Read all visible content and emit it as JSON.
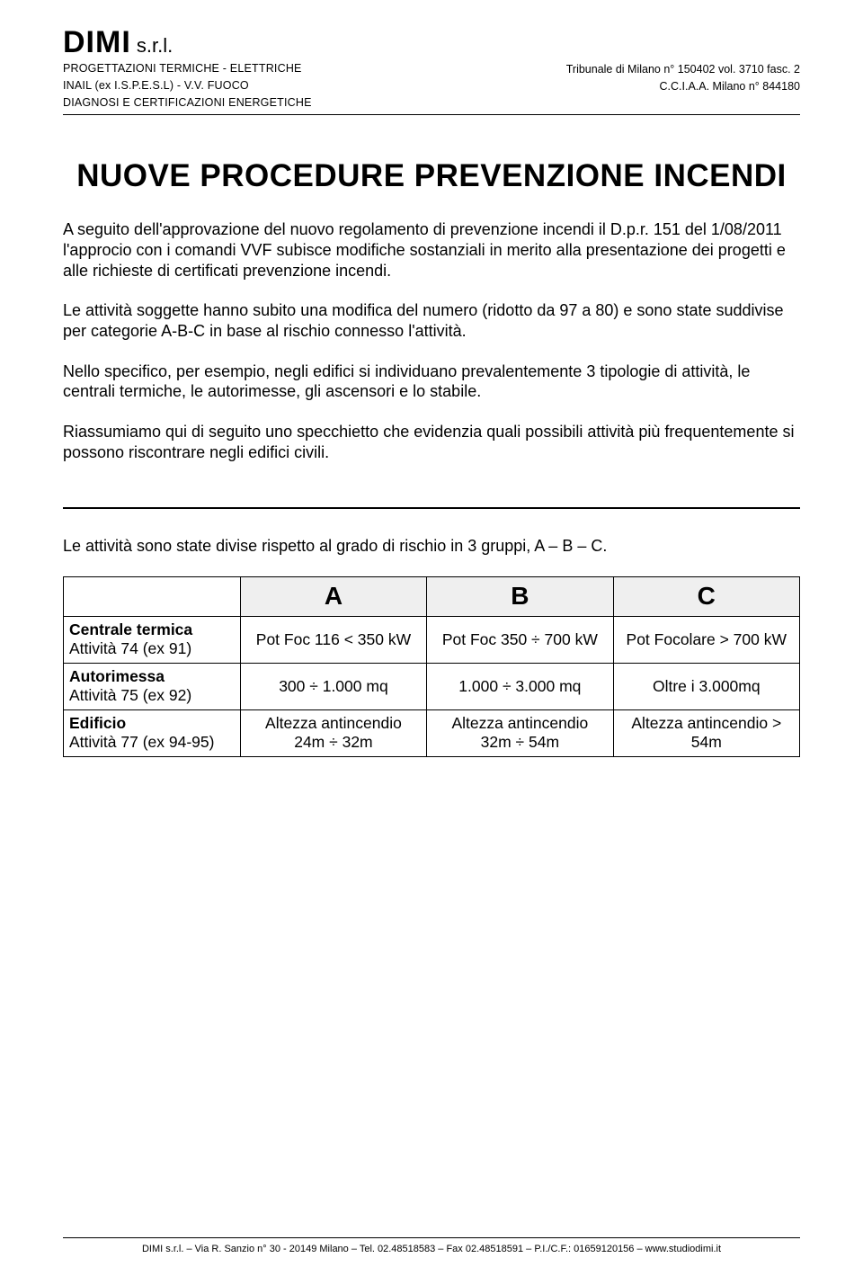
{
  "header": {
    "company_big": "DIMI",
    "company_suffix": " s.r.l.",
    "left_lines": [
      "PROGETTAZIONI TERMICHE - ELETTRICHE",
      "INAIL (ex I.S.P.E.S.L) - V.V. FUOCO",
      "DIAGNOSI E CERTIFICAZIONI ENERGETICHE"
    ],
    "right_lines": [
      "Tribunale di Milano n° 150402 vol. 3710 fasc. 2",
      "C.C.I.A.A. Milano n° 844180"
    ]
  },
  "title": "NUOVE PROCEDURE PREVENZIONE INCENDI",
  "paragraphs": [
    "A seguito dell'approvazione del nuovo regolamento di prevenzione incendi il D.p.r. 151 del 1/08/2011 l'approcio con i comandi VVF subisce modifiche sostanziali in merito alla presentazione dei progetti e alle richieste di certificati prevenzione incendi.",
    "Le attività soggette hanno subito una modifica del numero (ridotto da 97 a 80) e sono state suddivise per categorie A-B-C in base al rischio connesso l'attività.",
    "Nello specifico, per esempio, negli edifici si individuano prevalentemente 3 tipologie di attività, le centrali termiche, le autorimesse, gli ascensori e lo stabile.",
    "Riassumiamo qui di seguito uno specchietto che evidenzia quali  possibili attività più frequentemente si possono riscontrare negli edifici civili."
  ],
  "section_intro": "Le attività sono state divise rispetto al grado di rischio in 3 gruppi, A – B – C.",
  "table": {
    "header_bg": "#efefef",
    "columns": [
      "A",
      "B",
      "C"
    ],
    "rows": [
      {
        "label_main": "Centrale termica",
        "label_sub": "Attività 74 (ex 91)",
        "cells": [
          "Pot Foc 116 < 350 kW",
          "Pot Foc 350 ÷ 700 kW",
          "Pot Focolare > 700 kW"
        ]
      },
      {
        "label_main": "Autorimessa",
        "label_sub": "Attività 75 (ex 92)",
        "cells": [
          "300 ÷ 1.000 mq",
          "1.000 ÷ 3.000 mq",
          "Oltre i 3.000mq"
        ]
      },
      {
        "label_main": "Edificio",
        "label_sub": "Attività 77 (ex 94-95)",
        "cells": [
          "Altezza antincendio 24m ÷ 32m",
          "Altezza antincendio 32m ÷ 54m",
          "Altezza antincendio > 54m"
        ]
      }
    ]
  },
  "footer": "DIMI s.r.l. – Via R. Sanzio n° 30 - 20149  Milano – Tel.  02.48518583 – Fax  02.48518591 – P.I./C.F.:  01659120156 – www.studiodimi.it"
}
